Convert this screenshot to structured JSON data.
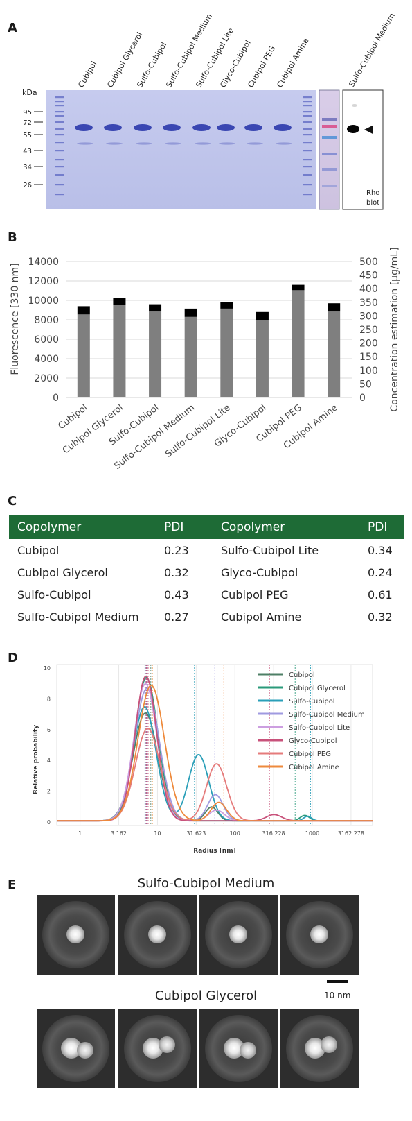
{
  "panels": {
    "a": "A",
    "b": "B",
    "c": "C",
    "d": "D",
    "e": "E"
  },
  "gel": {
    "lanes": [
      "Cubipol",
      "Cubipol Glycerol",
      "Sulfo-Cubipol",
      "Sulfo-Cubipol Medium",
      "Sulfo-Cubipol Lite",
      "Glyco-Cubipol",
      "Cubipol PEG",
      "Cubipol Amine"
    ],
    "blot_lane": "Sulfo-Cubipol Medium",
    "kda_label": "kDa",
    "markers": [
      "95",
      "72",
      "55",
      "43",
      "34",
      "26"
    ],
    "blot_note_1": "Rho",
    "blot_note_2": "blot",
    "arrow": "◀",
    "colors": {
      "gel": "#c8cdee",
      "band": "#2d3aa8",
      "blot_bg": "#ffffff"
    }
  },
  "chart_data": [
    {
      "type": "bar",
      "categories": [
        "Cubipol",
        "Cubipol Glycerol",
        "Sulfo-Cubipol",
        "Sulfo-Cubipol Medium",
        "Sulfo-Cubipol Lite",
        "Glyco-Cubipol",
        "Cubipol PEG",
        "Cubipol Amine"
      ],
      "series": [
        {
          "values": [
            8550,
            9500,
            8850,
            8300,
            9150,
            8000,
            11050,
            8850
          ]
        },
        {
          "values": [
            850,
            750,
            750,
            850,
            650,
            800,
            550,
            850
          ]
        }
      ],
      "stacked": true,
      "ylabel": "Fluorescence [330 nm]",
      "y2label": "Concentration estimation [µg/mL]",
      "yticks": [
        "0",
        "2000",
        "4000",
        "6000",
        "8000",
        "10000",
        "12000",
        "14000"
      ],
      "y2ticks": [
        "0",
        "50",
        "100",
        "150",
        "200",
        "250",
        "300",
        "350",
        "400",
        "450",
        "500"
      ],
      "ylim": [
        0,
        14000
      ],
      "y2lim": [
        0,
        500
      ],
      "grid": true,
      "colors": [
        "#7f7f7f",
        "#000000"
      ]
    },
    {
      "type": "line",
      "xscale": "log",
      "xlabel": "Radius [nm]",
      "ylabel": "Relative probability",
      "xticks": [
        "1",
        "3.162",
        "10",
        "31.623",
        "100",
        "316.228",
        "1000",
        "3162.278"
      ],
      "yticks": [
        "0",
        "2",
        "4",
        "6",
        "8",
        "10"
      ],
      "xlim": [
        0.5,
        6000
      ],
      "ylim": [
        0,
        10
      ],
      "legend": "top-right",
      "series": [
        {
          "name": "Cubipol",
          "color": "#4e7f66",
          "peaks": [
            {
              "r": 7.0,
              "h": 7.0,
              "w": 0.16
            },
            {
              "r": 50,
              "h": 0.9,
              "w": 0.08
            }
          ],
          "markers": [
            7.0,
            8.2
          ]
        },
        {
          "name": "Cubipol Glycerol",
          "color": "#2a9a7a",
          "peaks": [
            {
              "r": 7.2,
              "h": 9.3,
              "w": 0.15
            },
            {
              "r": 800,
              "h": 0.35,
              "w": 0.06
            }
          ],
          "markers": [
            7.3,
            600
          ]
        },
        {
          "name": "Sulfo-Cubipol",
          "color": "#2a9fb8",
          "peaks": [
            {
              "r": 6.8,
              "h": 7.4,
              "w": 0.15
            },
            {
              "r": 34,
              "h": 4.3,
              "w": 0.13
            },
            {
              "r": 870,
              "h": 0.3,
              "w": 0.05
            }
          ],
          "markers": [
            6.9,
            30,
            950
          ]
        },
        {
          "name": "Sulfo-Cubipol Medium",
          "color": "#9f9ae0",
          "peaks": [
            {
              "r": 7.3,
              "h": 8.6,
              "w": 0.16
            },
            {
              "r": 56,
              "h": 1.7,
              "w": 0.1
            }
          ],
          "markers": [
            7.5,
            55
          ]
        },
        {
          "name": "Sulfo-Cubipol Lite",
          "color": "#cc9ee0",
          "peaks": [
            {
              "r": 7.0,
              "h": 8.9,
              "w": 0.15
            },
            {
              "r": 58,
              "h": 0.7,
              "w": 0.1
            }
          ],
          "markers": [
            7.1
          ]
        },
        {
          "name": "Glyco-Cubipol",
          "color": "#c8527b",
          "peaks": [
            {
              "r": 7.1,
              "h": 9.4,
              "w": 0.14
            },
            {
              "r": 320,
              "h": 0.4,
              "w": 0.1
            }
          ],
          "markers": [
            7.2,
            280
          ]
        },
        {
          "name": "Cubipol PEG",
          "color": "#e57b7b",
          "peaks": [
            {
              "r": 7.5,
              "h": 6.0,
              "w": 0.16
            },
            {
              "r": 58,
              "h": 3.7,
              "w": 0.13
            }
          ],
          "markers": [
            7.6,
            68
          ]
        },
        {
          "name": "Cubipol Amine",
          "color": "#ee8a3c",
          "peaks": [
            {
              "r": 8.3,
              "h": 8.8,
              "w": 0.17
            },
            {
              "r": 62,
              "h": 1.2,
              "w": 0.1
            }
          ],
          "markers": [
            8.6,
            72
          ]
        }
      ]
    }
  ],
  "table": {
    "headers": [
      "Copolymer",
      "PDI",
      "Copolymer",
      "PDI"
    ],
    "rows": [
      [
        "Cubipol",
        "0.23",
        "Sulfo-Cubipol Lite",
        "0.34"
      ],
      [
        "Cubipol Glycerol",
        "0.32",
        "Glyco-Cubipol",
        "0.24"
      ],
      [
        "Sulfo-Cubipol",
        "0.43",
        "Cubipol PEG",
        "0.61"
      ],
      [
        "Sulfo-Cubipol Medium",
        "0.27",
        "Cubipol Amine",
        "0.32"
      ]
    ],
    "header_color": "#1e6b36"
  },
  "em": {
    "title_1": "Sulfo-Cubipol Medium",
    "title_2": "Cubipol Glycerol",
    "scale_bar": "10 nm"
  }
}
